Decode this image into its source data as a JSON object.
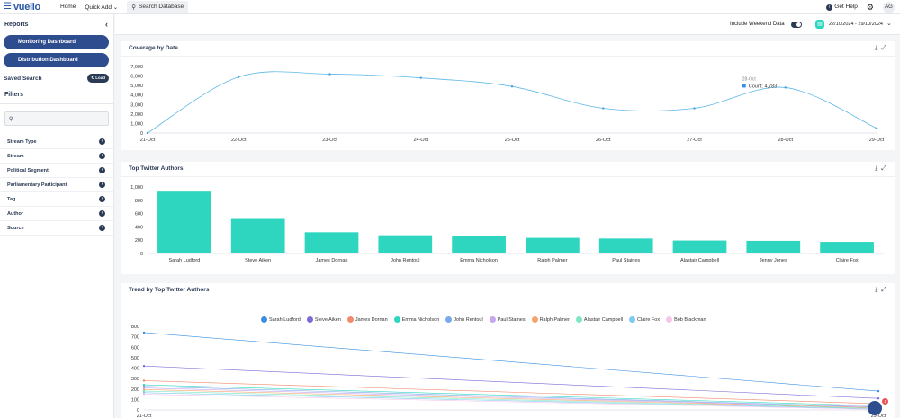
{
  "topbar": {
    "brand": "vuelio",
    "home": "Home",
    "quick_add": "Quick Add",
    "search": "Search Database",
    "help": "Get Help",
    "avatar": "AG"
  },
  "sidebar": {
    "title": "Reports",
    "buttons": [
      "Monitoring Dashboard",
      "Distribution Dashboard"
    ],
    "saved_search": "Saved Search",
    "load": "Load",
    "filters": "Filters",
    "items": [
      "Stream Type",
      "Stream",
      "Political Segment",
      "Parliamentary Participant",
      "Tag",
      "Author",
      "Source"
    ]
  },
  "subbar": {
    "weekend_label": "Include Weekend Data",
    "date_range": "22/10/2024 - 29/10/2024"
  },
  "cards": {
    "coverage": {
      "title": "Coverage by Date"
    },
    "top_authors": {
      "title": "Top Twitter Authors"
    },
    "trend": {
      "title": "Trend by Top Twitter Authors"
    }
  },
  "colors": {
    "accent": "#2fd6bf",
    "navy": "#2b3a55",
    "button": "#2e4d8f",
    "line": "#5fb8e8"
  },
  "chart_data": [
    {
      "type": "line",
      "title": "Coverage by Date",
      "x": [
        "21-Oct",
        "22-Oct",
        "23-Oct",
        "24-Oct",
        "25-Oct",
        "26-Oct",
        "27-Oct",
        "28-Oct",
        "29-Oct"
      ],
      "values": [
        0,
        5900,
        6200,
        5800,
        4900,
        2600,
        2600,
        4783,
        500
      ],
      "yticks": [
        0,
        1000,
        2000,
        3000,
        4000,
        5000,
        6000,
        7000
      ],
      "ylim": [
        0,
        7000
      ],
      "tooltip": {
        "date": "28-Oct",
        "label": "Count: 4,783"
      }
    },
    {
      "type": "bar",
      "title": "Top Twitter Authors",
      "categories": [
        "Sarah Ludford",
        "Steve Aiken",
        "James Dornan",
        "John Rentoul",
        "Emma Nicholson",
        "Ralph Palmer",
        "Paul Staines",
        "Alastair Campbell",
        "Jenny Jones",
        "Claire Fox"
      ],
      "values": [
        930,
        520,
        320,
        275,
        270,
        235,
        225,
        195,
        190,
        175
      ],
      "yticks": [
        0,
        200,
        400,
        600,
        800,
        1000
      ],
      "ylim": [
        0,
        1000
      ]
    },
    {
      "type": "line",
      "title": "Trend by Top Twitter Authors",
      "x": [
        "21-Oct",
        "29-Oct"
      ],
      "yticks": [
        0,
        100,
        200,
        300,
        400,
        500,
        600,
        700,
        800
      ],
      "ylim": [
        0,
        800
      ],
      "series": [
        {
          "name": "Sarah Ludford",
          "color": "#3a8fe0",
          "values": [
            740,
            180
          ]
        },
        {
          "name": "Steve Aiken",
          "color": "#7b6ad8",
          "values": [
            420,
            110
          ]
        },
        {
          "name": "James Dornan",
          "color": "#f08a6a",
          "values": [
            280,
            60
          ]
        },
        {
          "name": "Emma Nicholson",
          "color": "#2fd6bf",
          "values": [
            240,
            40
          ]
        },
        {
          "name": "John Rentoul",
          "color": "#78a9e8",
          "values": [
            225,
            30
          ]
        },
        {
          "name": "Paul Staines",
          "color": "#c7a6f0",
          "values": [
            210,
            25
          ]
        },
        {
          "name": "Ralph Palmer",
          "color": "#f5a36b",
          "values": [
            195,
            20
          ]
        },
        {
          "name": "Alastair Campbell",
          "color": "#7fe6c4",
          "values": [
            180,
            15
          ]
        },
        {
          "name": "Claire Fox",
          "color": "#7ec9ef",
          "values": [
            165,
            10
          ]
        },
        {
          "name": "Bob Blackman",
          "color": "#f5c6ea",
          "values": [
            150,
            5
          ]
        }
      ]
    }
  ]
}
